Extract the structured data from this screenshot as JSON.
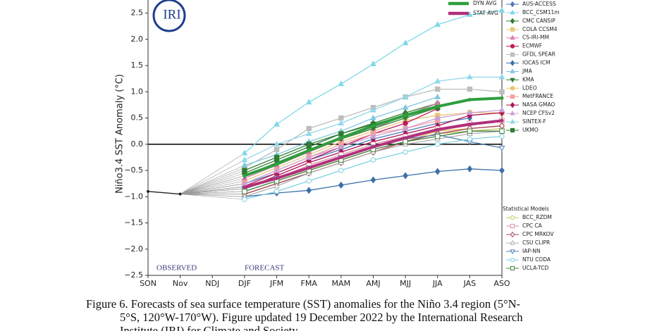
{
  "chart_data": {
    "type": "line",
    "logo_text": "IRI",
    "ylabel": "Niño3.4 SST Anomaly (°C)",
    "categories": [
      "SON",
      "Nov",
      "NDJ",
      "DJF",
      "JFM",
      "FMA",
      "MAM",
      "AMJ",
      "MJJ",
      "JJA",
      "JAS",
      "ASO"
    ],
    "ylim": [
      -2.5,
      2.75
    ],
    "yticks": [
      {
        "value": -2.5,
        "label": "−2.5"
      },
      {
        "value": -2,
        "label": "−2.0"
      },
      {
        "value": -1.5,
        "label": "−1.5"
      },
      {
        "value": -1,
        "label": "−1.0"
      },
      {
        "value": -0.5,
        "label": "−0.5"
      },
      {
        "value": 0,
        "label": "0.0"
      },
      0.5,
      {
        "value": 1,
        "label": "1.0"
      },
      1.5,
      {
        "value": 2,
        "label": "2.0"
      },
      2.5
    ],
    "annotations": [
      "OBSERVED",
      "FORECAST"
    ],
    "observed": {
      "color": "#222222",
      "values": [
        -0.9,
        -0.95,
        null,
        null,
        null,
        null,
        null,
        null,
        null,
        null,
        null,
        null
      ]
    },
    "averages": [
      {
        "name": "DYN AVG",
        "color": "#2e9e3e",
        "values": [
          null,
          null,
          null,
          -0.6,
          -0.38,
          -0.12,
          0.12,
          0.35,
          0.55,
          0.72,
          0.85,
          0.88
        ]
      },
      {
        "name": "STAT AVG",
        "color": "#b0307a",
        "values": [
          null,
          null,
          null,
          -0.82,
          -0.65,
          -0.45,
          -0.25,
          -0.05,
          0.12,
          0.28,
          0.38,
          0.45
        ]
      }
    ],
    "series": [
      {
        "name": "AUS-ACCESS",
        "color": "#4a7ab5",
        "marker": "diamond",
        "filled": true,
        "values": [
          null,
          null,
          null,
          -0.75,
          -0.55,
          -0.3,
          -0.1,
          0.1,
          0.25,
          0.4,
          0.5,
          null
        ]
      },
      {
        "name": "BCC_CSM11m",
        "color": "#7fd8e8",
        "marker": "triangle",
        "filled": true,
        "values": [
          null,
          null,
          null,
          -0.17,
          0.38,
          0.8,
          1.15,
          1.53,
          1.93,
          2.28,
          2.47,
          2.55
        ]
      },
      {
        "name": "CMC CANSIP",
        "color": "#2e7d32",
        "marker": "diamond",
        "filled": true,
        "values": [
          null,
          null,
          null,
          -0.55,
          -0.3,
          -0.05,
          0.2,
          0.4,
          0.6,
          0.78,
          null,
          null
        ]
      },
      {
        "name": "COLA CCSM4",
        "color": "#e8c87a",
        "marker": "square",
        "filled": true,
        "values": [
          null,
          null,
          null,
          -0.7,
          -0.45,
          -0.2,
          0.05,
          0.25,
          0.45,
          0.55,
          0.6,
          0.6
        ]
      },
      {
        "name": "CS-IRI-MM",
        "color": "#e07ab0",
        "marker": "triangle",
        "filled": true,
        "values": [
          null,
          null,
          null,
          -0.65,
          -0.4,
          -0.15,
          0.1,
          0.3,
          0.55,
          0.78,
          null,
          null
        ]
      },
      {
        "name": "ECMWF",
        "color": "#c2185b",
        "marker": "circle",
        "filled": true,
        "values": [
          null,
          null,
          null,
          -0.8,
          -0.55,
          -0.3,
          -0.05,
          0.2,
          0.4,
          0.68,
          null,
          null
        ]
      },
      {
        "name": "GFDL SPEAR",
        "color": "#bdbdbd",
        "marker": "square",
        "filled": true,
        "values": [
          null,
          null,
          null,
          -0.45,
          -0.1,
          0.3,
          0.5,
          0.7,
          0.9,
          1.05,
          1.05,
          1.0
        ]
      },
      {
        "name": "IOCAS ICM",
        "color": "#3d6fa8",
        "marker": "diamond",
        "filled": true,
        "values": [
          null,
          null,
          null,
          -1.0,
          -0.93,
          -0.88,
          -0.78,
          -0.68,
          -0.6,
          -0.52,
          -0.47,
          -0.5
        ]
      },
      {
        "name": "JMA",
        "color": "#7fc8e0",
        "marker": "triangle",
        "filled": true,
        "values": [
          null,
          null,
          null,
          -0.4,
          -0.2,
          0.05,
          0.25,
          0.5,
          0.7,
          0.9,
          null,
          null
        ]
      },
      {
        "name": "KMA",
        "color": "#2e7d32",
        "marker": "triangle-down",
        "filled": true,
        "values": [
          null,
          null,
          null,
          -0.6,
          -0.35,
          -0.1,
          0.1,
          0.3,
          0.5,
          0.7,
          null,
          null
        ]
      },
      {
        "name": "LDEO",
        "color": "#f0c060",
        "marker": "circle",
        "filled": true,
        "values": [
          null,
          null,
          null,
          -0.95,
          -0.75,
          -0.55,
          -0.35,
          -0.15,
          0.05,
          0.25,
          0.3,
          0.35
        ]
      },
      {
        "name": "MetFRANCE",
        "color": "#f4a0a0",
        "marker": "square",
        "filled": true,
        "values": [
          null,
          null,
          null,
          -0.75,
          -0.5,
          -0.25,
          0,
          0.2,
          0.3,
          0.45,
          null,
          null
        ]
      },
      {
        "name": "NASA GMAO",
        "color": "#ad1457",
        "marker": "diamond",
        "filled": true,
        "values": [
          null,
          null,
          null,
          -0.85,
          -0.6,
          -0.35,
          -0.15,
          0.05,
          0.2,
          0.35,
          0.55,
          0.6
        ]
      },
      {
        "name": "NCEP CFSv2",
        "color": "#c8a0d8",
        "marker": "triangle",
        "filled": true,
        "values": [
          null,
          null,
          null,
          -0.75,
          -0.5,
          -0.25,
          -0.05,
          0.15,
          0.3,
          0.5,
          0.6,
          0.65
        ]
      },
      {
        "name": "SINTEX-F",
        "color": "#90d8e8",
        "marker": "triangle",
        "filled": true,
        "values": [
          null,
          null,
          null,
          -0.3,
          0,
          0.2,
          0.4,
          0.65,
          0.9,
          1.2,
          1.28,
          1.28
        ]
      },
      {
        "name": "UKMO",
        "color": "#2e7d32",
        "marker": "square",
        "filled": true,
        "values": [
          null,
          null,
          null,
          -0.5,
          -0.25,
          0,
          0.2,
          0.38,
          0.55,
          0.7,
          null,
          null
        ]
      }
    ],
    "statistical": {
      "title": "Statistical Models",
      "series": [
        {
          "name": "BCC_RZDM",
          "color": "#c8c860",
          "marker": "circle",
          "filled": false,
          "values": [
            null,
            null,
            null,
            -0.9,
            -0.7,
            -0.5,
            -0.3,
            -0.1,
            0.05,
            0.2,
            0.25,
            0.3
          ]
        },
        {
          "name": "CPC CA",
          "color": "#e090a0",
          "marker": "square",
          "filled": false,
          "values": [
            null,
            null,
            null,
            -0.85,
            -0.65,
            -0.4,
            -0.2,
            0,
            0.15,
            0.3,
            0.4,
            0.45
          ]
        },
        {
          "name": "CPC MRKOV",
          "color": "#a04060",
          "marker": "diamond",
          "filled": false,
          "values": [
            null,
            null,
            null,
            -0.95,
            -0.75,
            -0.55,
            -0.35,
            -0.15,
            0.05,
            0.2,
            0.3,
            0.35
          ]
        },
        {
          "name": "CSU CLIPR",
          "color": "#b0b0b0",
          "marker": "triangle",
          "filled": false,
          "values": [
            null,
            null,
            null,
            -1.0,
            -0.8,
            -0.55,
            -0.35,
            -0.15,
            0,
            0.1,
            0.2,
            0.25
          ]
        },
        {
          "name": "IAP-NN",
          "color": "#5080b0",
          "marker": "triangle-down",
          "filled": false,
          "values": [
            null,
            null,
            null,
            -0.85,
            -0.65,
            -0.45,
            -0.25,
            -0.05,
            0.1,
            0.18,
            0.05,
            -0.07
          ]
        },
        {
          "name": "NTU CODA",
          "color": "#80d0e0",
          "marker": "circle",
          "filled": false,
          "values": [
            null,
            null,
            null,
            -1.05,
            -0.9,
            -0.7,
            -0.5,
            -0.3,
            -0.15,
            0,
            0.1,
            0.15
          ]
        },
        {
          "name": "UCLA-TCD",
          "color": "#408040",
          "marker": "square",
          "filled": false,
          "values": [
            null,
            null,
            null,
            -0.9,
            -0.7,
            -0.5,
            -0.3,
            -0.1,
            0.05,
            0.15,
            0.25,
            0.25
          ]
        }
      ]
    },
    "caption": [
      "Figure 6. Forecasts of sea surface temperature (SST) anomalies for the Niño 3.4 region (5°N-",
      "5°S, 120°W-170°W). Figure updated 19 December 2022 by the International Research",
      "Institute (IRI) for Climate and Society."
    ]
  }
}
